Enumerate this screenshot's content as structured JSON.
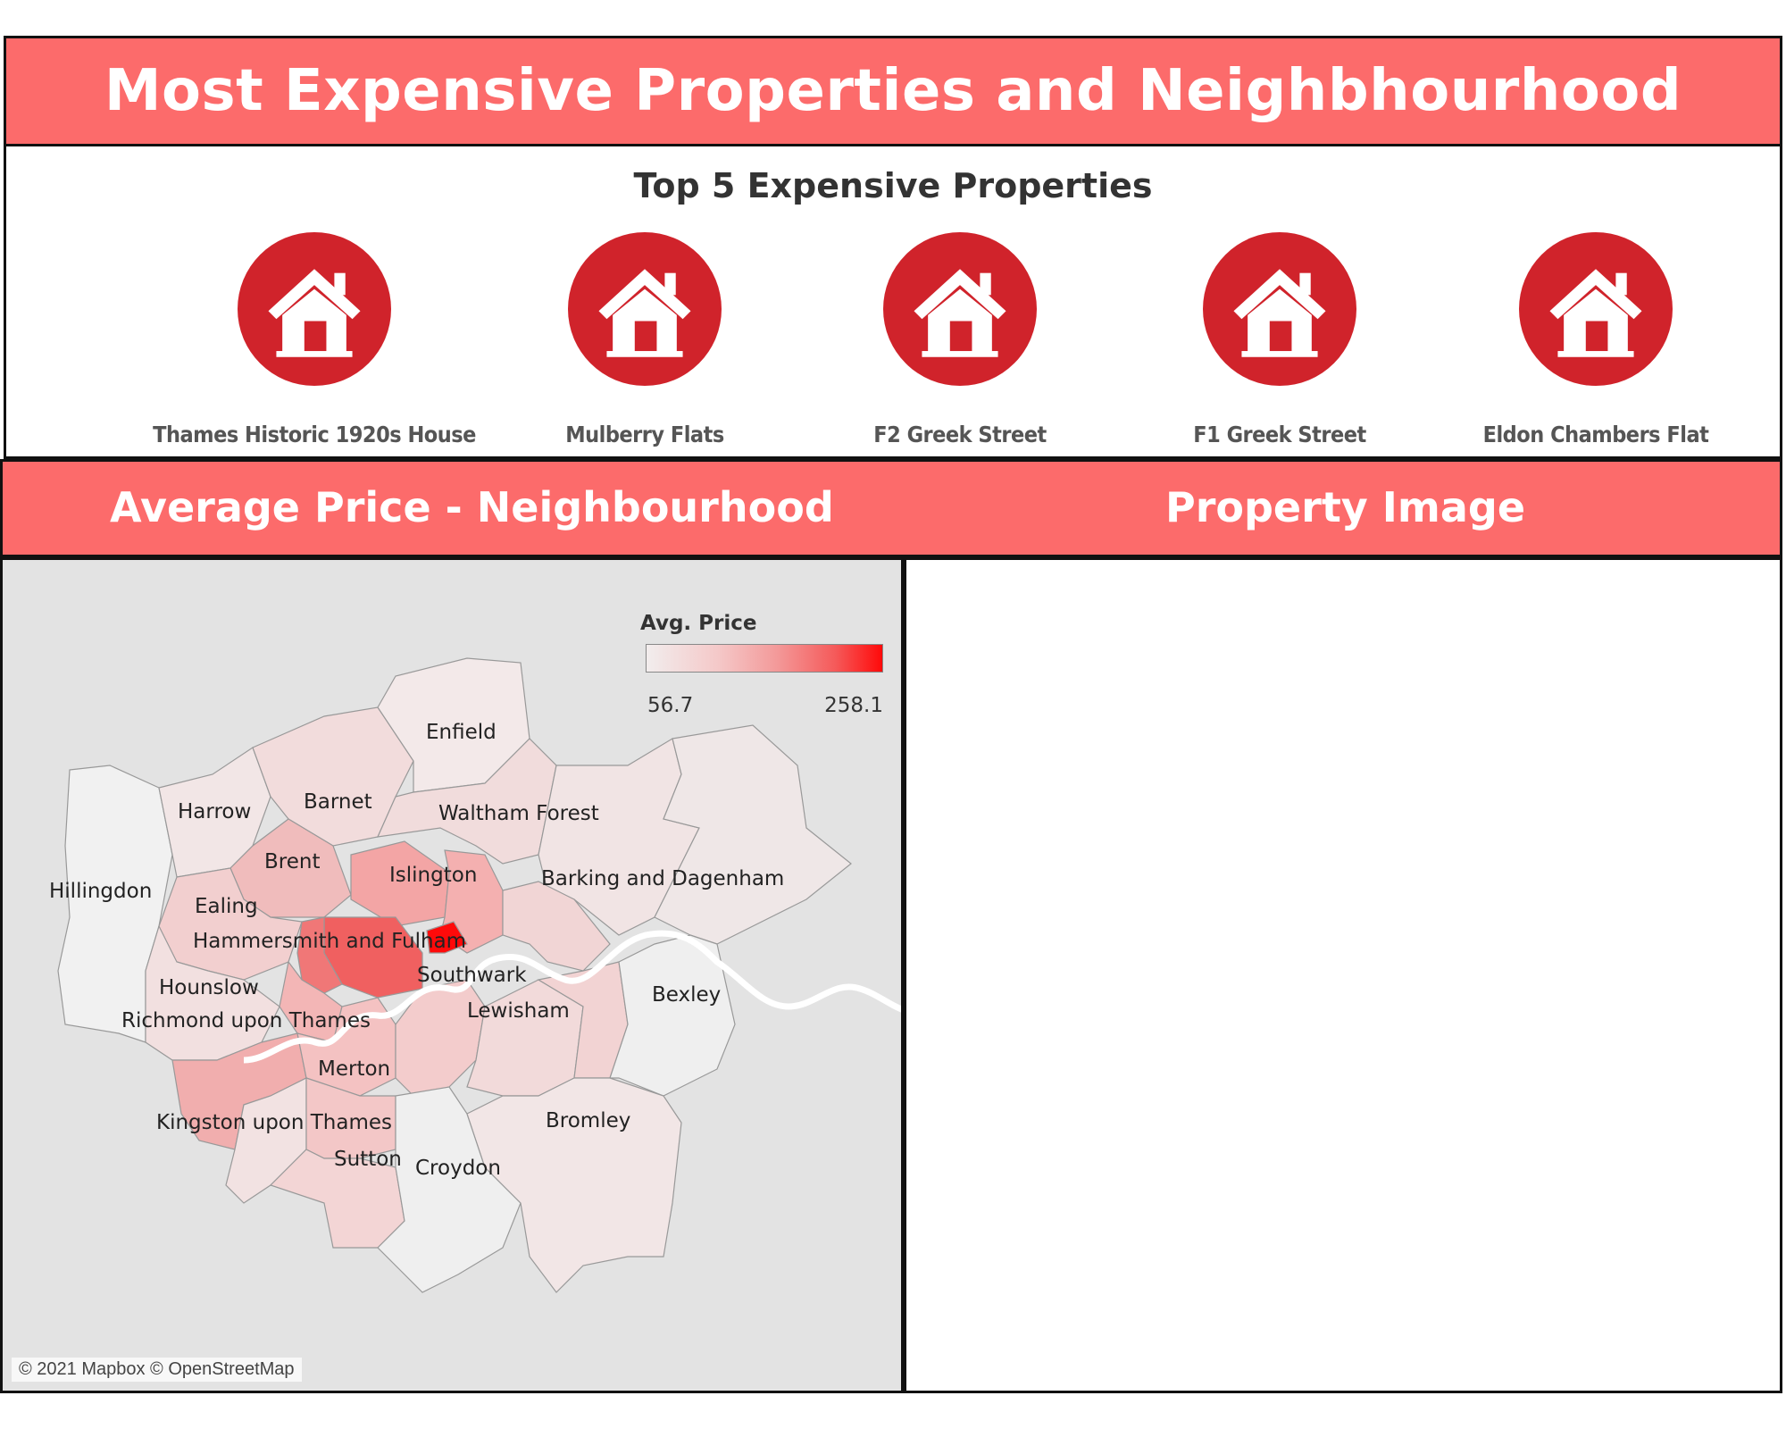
{
  "dashboard": {
    "title": "Most Expensive Properties and Neighbhourhood"
  },
  "top5": {
    "title": "Top 5 Expensive Properties",
    "properties": [
      {
        "name": "Thames Historic 1920s House",
        "icon": "house-icon"
      },
      {
        "name": "Mulberry Flats",
        "icon": "house-icon"
      },
      {
        "name": "F2 Greek Street",
        "icon": "house-icon"
      },
      {
        "name": "F1 Greek Street",
        "icon": "house-icon"
      },
      {
        "name": "Eldon Chambers Flat",
        "icon": "house-icon"
      }
    ]
  },
  "map_section": {
    "title": "Average Price - Neighbourhood",
    "legend": {
      "title": "Avg. Price",
      "min": "56.7",
      "max": "258.1"
    },
    "credit": "© 2021 Mapbox © OpenStreetMap",
    "boroughs": [
      "Enfield",
      "Harrow",
      "Barnet",
      "Waltham Forest",
      "Brent",
      "Islington",
      "Barking and Dagenham",
      "Hillingdon",
      "Ealing",
      "Hammersmith and Fulham",
      "Southwark",
      "Hounslow",
      "Bexley",
      "Richmond upon Thames",
      "Lewisham",
      "Merton",
      "Kingston upon Thames",
      "Bromley",
      "Sutton",
      "Croydon"
    ]
  },
  "image_section": {
    "title": "Property Image"
  },
  "colors": {
    "banner": "#fc6b6b",
    "icon_red": "#d0232b",
    "map_high": "#ff0a0a",
    "map_low": "#f2eded"
  }
}
